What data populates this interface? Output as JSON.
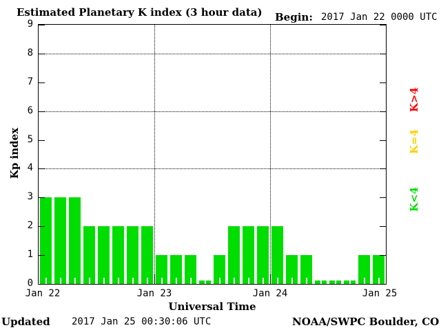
{
  "chart_data": {
    "type": "bar",
    "title": "Estimated Planetary K index (3 hour data)",
    "begin_label": "Begin:",
    "begin_value": "2017 Jan 22 0000 UTC",
    "ylabel": "Kp index",
    "xlabel": "Universal Time",
    "ylim": [
      0,
      9
    ],
    "yticks": [
      0,
      1,
      2,
      3,
      4,
      5,
      6,
      7,
      8,
      9
    ],
    "grid_y": [
      4,
      6,
      8
    ],
    "interval_hours": 3,
    "bars_per_day": 8,
    "x_day_labels": [
      "Jan 22",
      "Jan 23",
      "Jan 24",
      "Jan 25"
    ],
    "values": [
      3,
      3,
      3,
      2,
      2,
      2,
      2,
      2,
      1,
      1,
      1,
      0,
      1,
      2,
      2,
      2,
      2,
      1,
      1,
      0,
      0,
      0,
      1,
      1
    ],
    "colors": {
      "green": "#00DD00",
      "yellow": "#FFD000",
      "red": "#FF0000",
      "axis": "#000000",
      "background": "#FFFFFF"
    },
    "bar_color_key": "green",
    "legend": [
      {
        "label": "K>4",
        "color_key": "red"
      },
      {
        "label": "K=4",
        "color_key": "yellow"
      },
      {
        "label": "K<4",
        "color_key": "green"
      }
    ],
    "footer": {
      "updated_label": "Updated",
      "updated_value": "2017 Jan 25 00:30:06 UTC",
      "source": "NOAA/SWPC Boulder, CO USA"
    }
  }
}
